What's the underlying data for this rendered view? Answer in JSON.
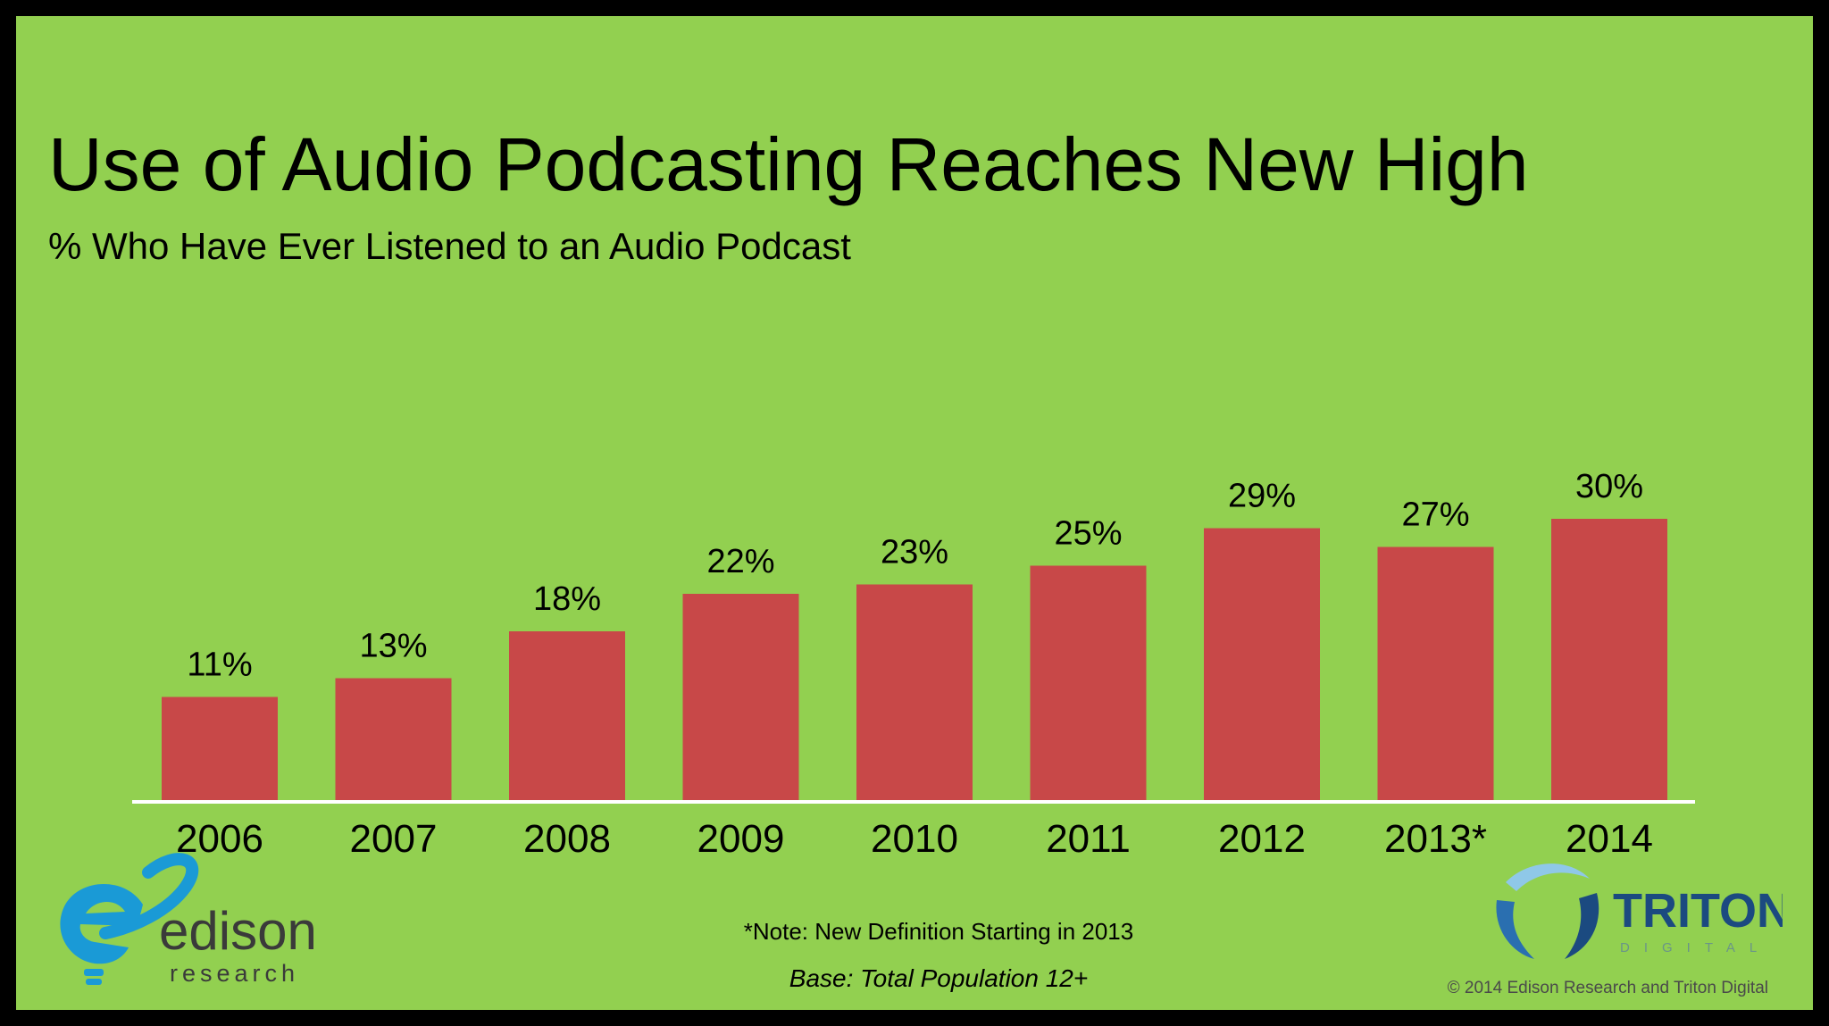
{
  "title": "Use of Audio Podcasting Reaches New High",
  "subtitle": "% Who Have Ever Listened to an Audio Podcast",
  "note": "*Note: New Definition Starting in 2013",
  "base": "Base: Total Population 12+",
  "copyright": "© 2014 Edison Research and Triton Digital",
  "logos": {
    "edison": {
      "name": "edison",
      "tagline": "research",
      "color": "#1a9ad6",
      "text_color": "#3a3a3a"
    },
    "triton": {
      "name": "TRITON",
      "tagline": "DIGITAL",
      "color": "#1b4a80"
    }
  },
  "colors": {
    "background": "#92d050",
    "bar": "#c84848",
    "frame": "#000000",
    "axis": "#ffffff"
  },
  "chart_data": {
    "type": "bar",
    "title": "Use of Audio Podcasting Reaches New High",
    "subtitle": "% Who Have Ever Listened to an Audio Podcast",
    "categories": [
      "2006",
      "2007",
      "2008",
      "2009",
      "2010",
      "2011",
      "2012",
      "2013*",
      "2014"
    ],
    "values": [
      11,
      13,
      18,
      22,
      23,
      25,
      29,
      27,
      30
    ],
    "value_labels": [
      "11%",
      "13%",
      "18%",
      "22%",
      "23%",
      "25%",
      "29%",
      "27%",
      "30%"
    ],
    "unit": "%",
    "ylim": [
      0,
      30
    ],
    "grid": false,
    "legend": "none"
  }
}
